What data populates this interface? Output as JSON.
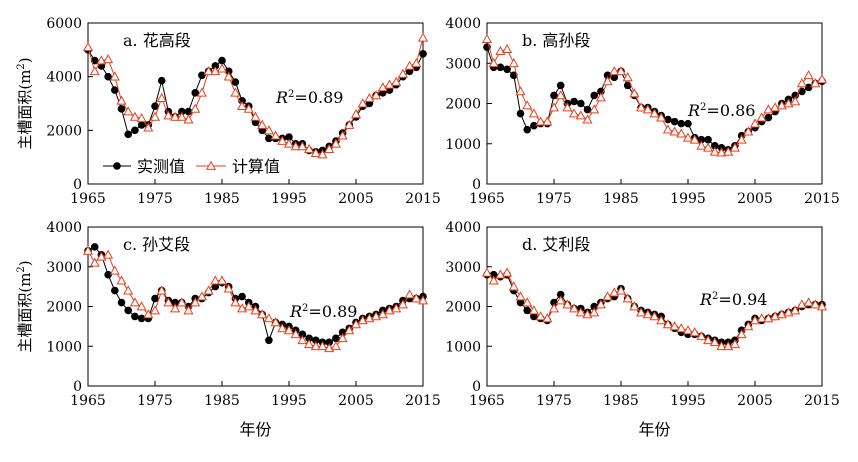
{
  "chart_data": [
    {
      "type": "line",
      "title": "a. 花高段",
      "xlabel": "",
      "ylabel": "主槽面积(m²)",
      "xlim": [
        1965,
        2015
      ],
      "ylim": [
        0,
        6000
      ],
      "xticks": [
        "1965",
        "1975",
        "1985",
        "1995",
        "2005",
        "2015"
      ],
      "yticks": [
        "0",
        "2000",
        "4000",
        "6000"
      ],
      "r2_label": "R²=0.89",
      "legend": [
        "实测值",
        "计算值"
      ],
      "legend_position": "bottom-left",
      "grid": false,
      "x": [
        1965,
        1966,
        1967,
        1968,
        1969,
        1970,
        1971,
        1972,
        1973,
        1974,
        1975,
        1976,
        1977,
        1978,
        1979,
        1980,
        1981,
        1982,
        1983,
        1984,
        1985,
        1986,
        1987,
        1988,
        1989,
        1990,
        1991,
        1992,
        1993,
        1994,
        1995,
        1996,
        1997,
        1998,
        1999,
        2000,
        2001,
        2002,
        2003,
        2004,
        2005,
        2006,
        2007,
        2008,
        2009,
        2010,
        2011,
        2012,
        2013,
        2014,
        2015
      ],
      "series": [
        {
          "name": "实测值",
          "color": "#000000",
          "marker": "circle",
          "values": [
            5000,
            4600,
            4400,
            4000,
            3500,
            2800,
            1850,
            2000,
            2200,
            2200,
            2900,
            3850,
            2700,
            2500,
            2700,
            2700,
            3400,
            4050,
            4200,
            4400,
            4600,
            4200,
            3800,
            3100,
            2900,
            2300,
            2000,
            1700,
            1700,
            1700,
            1750,
            1500,
            1500,
            1250,
            1200,
            1250,
            1400,
            1600,
            1900,
            2200,
            2500,
            2900,
            3000,
            3300,
            3400,
            3500,
            3700,
            4000,
            4200,
            4350,
            4850
          ]
        },
        {
          "name": "计算值",
          "color": "#E8401C",
          "marker": "triangle",
          "values": [
            5100,
            4200,
            4600,
            4650,
            4000,
            3100,
            2700,
            2500,
            2450,
            2100,
            2500,
            3200,
            2550,
            2500,
            2500,
            2400,
            2800,
            3400,
            4200,
            4200,
            4300,
            4000,
            3400,
            2900,
            2800,
            2500,
            2200,
            2000,
            1800,
            1600,
            1500,
            1400,
            1400,
            1300,
            1150,
            1100,
            1300,
            1500,
            1800,
            2200,
            2600,
            3000,
            3200,
            3300,
            3600,
            3700,
            3800,
            4100,
            4400,
            4500,
            5450
          ]
        }
      ]
    },
    {
      "type": "line",
      "title": "b. 高孙段",
      "xlabel": "",
      "ylabel": "",
      "xlim": [
        1965,
        2015
      ],
      "ylim": [
        0,
        4000
      ],
      "xticks": [
        "1965",
        "1975",
        "1985",
        "1995",
        "2005",
        "2015"
      ],
      "yticks": [
        "0",
        "1000",
        "2000",
        "3000",
        "4000"
      ],
      "r2_label": "R²=0.86",
      "grid": false,
      "x": [
        1965,
        1966,
        1967,
        1968,
        1969,
        1970,
        1971,
        1972,
        1973,
        1974,
        1975,
        1976,
        1977,
        1978,
        1979,
        1980,
        1981,
        1982,
        1983,
        1984,
        1985,
        1986,
        1987,
        1988,
        1989,
        1990,
        1991,
        1992,
        1993,
        1994,
        1995,
        1996,
        1997,
        1998,
        1999,
        2000,
        2001,
        2002,
        2003,
        2004,
        2005,
        2006,
        2007,
        2008,
        2009,
        2010,
        2011,
        2012,
        2013,
        2014,
        2015
      ],
      "series": [
        {
          "name": "实测值",
          "color": "#000000",
          "marker": "circle",
          "values": [
            3400,
            2900,
            2900,
            2850,
            2700,
            1750,
            1350,
            1450,
            1500,
            1500,
            2200,
            2450,
            2000,
            2050,
            2000,
            1850,
            2200,
            2300,
            2700,
            2650,
            2800,
            2450,
            2200,
            1900,
            1900,
            1800,
            1700,
            1600,
            1550,
            1500,
            1500,
            1150,
            1100,
            1100,
            950,
            900,
            850,
            950,
            1200,
            1300,
            1400,
            1550,
            1650,
            1800,
            2000,
            2100,
            2200,
            2300,
            2400,
            2500,
            2550
          ]
        },
        {
          "name": "计算值",
          "color": "#E8401C",
          "marker": "triangle",
          "values": [
            3600,
            3000,
            3300,
            3350,
            3000,
            2300,
            1950,
            1750,
            1550,
            1550,
            1900,
            2200,
            1900,
            1750,
            1700,
            1600,
            1850,
            2150,
            2550,
            2800,
            2800,
            2650,
            2250,
            1900,
            1850,
            1750,
            1650,
            1350,
            1300,
            1250,
            1150,
            1100,
            950,
            900,
            800,
            780,
            800,
            900,
            1100,
            1300,
            1500,
            1650,
            1850,
            1900,
            1950,
            2000,
            2050,
            2500,
            2700,
            2500,
            2600
          ]
        }
      ]
    },
    {
      "type": "line",
      "title": "c. 孙艾段",
      "xlabel": "年份",
      "ylabel": "主槽面积(m²)",
      "xlim": [
        1965,
        2015
      ],
      "ylim": [
        0,
        4000
      ],
      "xticks": [
        "1965",
        "1975",
        "1985",
        "1995",
        "2005",
        "2015"
      ],
      "yticks": [
        "0",
        "1000",
        "2000",
        "3000",
        "4000"
      ],
      "r2_label": "R²=0.89",
      "grid": false,
      "x": [
        1965,
        1966,
        1967,
        1968,
        1969,
        1970,
        1971,
        1972,
        1973,
        1974,
        1975,
        1976,
        1977,
        1978,
        1979,
        1980,
        1981,
        1982,
        1983,
        1984,
        1985,
        1986,
        1987,
        1988,
        1989,
        1990,
        1991,
        1992,
        1993,
        1994,
        1995,
        1996,
        1997,
        1998,
        1999,
        2000,
        2001,
        2002,
        2003,
        2004,
        2005,
        2006,
        2007,
        2008,
        2009,
        2010,
        2011,
        2012,
        2013,
        2014,
        2015
      ],
      "series": [
        {
          "name": "实测值",
          "color": "#000000",
          "marker": "circle",
          "values": [
            3400,
            3500,
            3300,
            2800,
            2400,
            2100,
            1900,
            1750,
            1700,
            1700,
            2200,
            2400,
            2150,
            2100,
            2100,
            2000,
            2200,
            2200,
            2350,
            2500,
            2600,
            2500,
            2200,
            2250,
            2100,
            2000,
            1800,
            1150,
            1600,
            1550,
            1500,
            1400,
            1300,
            1200,
            1150,
            1100,
            1100,
            1200,
            1350,
            1450,
            1600,
            1700,
            1750,
            1800,
            1900,
            1950,
            2000,
            2150,
            2200,
            2200,
            2250
          ]
        },
        {
          "name": "计算值",
          "color": "#E8401C",
          "marker": "triangle",
          "values": [
            3400,
            3100,
            3250,
            3300,
            2900,
            2650,
            2400,
            2100,
            2000,
            1800,
            1900,
            2400,
            2100,
            1950,
            2100,
            1900,
            2100,
            2250,
            2400,
            2650,
            2650,
            2450,
            2100,
            1950,
            2000,
            1900,
            1800,
            1700,
            1600,
            1450,
            1400,
            1300,
            1150,
            1050,
            1000,
            1000,
            950,
            1000,
            1200,
            1400,
            1550,
            1650,
            1700,
            1750,
            1800,
            1900,
            1950,
            2050,
            2300,
            2200,
            2150
          ]
        }
      ]
    },
    {
      "type": "line",
      "title": "d. 艾利段",
      "xlabel": "年份",
      "ylabel": "",
      "xlim": [
        1965,
        2015
      ],
      "ylim": [
        0,
        4000
      ],
      "xticks": [
        "1965",
        "1975",
        "1985",
        "1995",
        "2005",
        "2015"
      ],
      "yticks": [
        "0",
        "1000",
        "2000",
        "3000",
        "4000"
      ],
      "r2_label": "R²=0.94",
      "grid": false,
      "x": [
        1965,
        1966,
        1967,
        1968,
        1969,
        1970,
        1971,
        1972,
        1973,
        1974,
        1975,
        1976,
        1977,
        1978,
        1979,
        1980,
        1981,
        1982,
        1983,
        1984,
        1985,
        1986,
        1987,
        1988,
        1989,
        1990,
        1991,
        1992,
        1993,
        1994,
        1995,
        1996,
        1997,
        1998,
        1999,
        2000,
        2001,
        2002,
        2003,
        2004,
        2005,
        2006,
        2007,
        2008,
        2009,
        2010,
        2011,
        2012,
        2013,
        2014,
        2015
      ],
      "series": [
        {
          "name": "实测值",
          "color": "#000000",
          "marker": "circle",
          "values": [
            2800,
            2800,
            2750,
            2800,
            2400,
            2100,
            1900,
            1750,
            1700,
            1650,
            2100,
            2300,
            2050,
            1950,
            1950,
            1850,
            2000,
            2100,
            2200,
            2250,
            2450,
            2200,
            2000,
            1900,
            1850,
            1800,
            1750,
            1550,
            1450,
            1350,
            1300,
            1300,
            1250,
            1200,
            1150,
            1100,
            1100,
            1150,
            1400,
            1550,
            1700,
            1650,
            1700,
            1750,
            1800,
            1850,
            1900,
            2000,
            2050,
            2050,
            2050
          ]
        },
        {
          "name": "计算值",
          "color": "#E8401C",
          "marker": "triangle",
          "values": [
            2850,
            2650,
            2800,
            2850,
            2500,
            2250,
            2100,
            1900,
            1750,
            1700,
            1950,
            2150,
            2050,
            1950,
            1850,
            1800,
            1850,
            2050,
            2250,
            2350,
            2400,
            2200,
            2000,
            1850,
            1800,
            1750,
            1650,
            1550,
            1500,
            1450,
            1400,
            1350,
            1250,
            1150,
            1100,
            1000,
            1000,
            1050,
            1300,
            1500,
            1650,
            1700,
            1700,
            1750,
            1800,
            1850,
            1900,
            2050,
            2100,
            2050,
            2000
          ]
        }
      ]
    }
  ]
}
